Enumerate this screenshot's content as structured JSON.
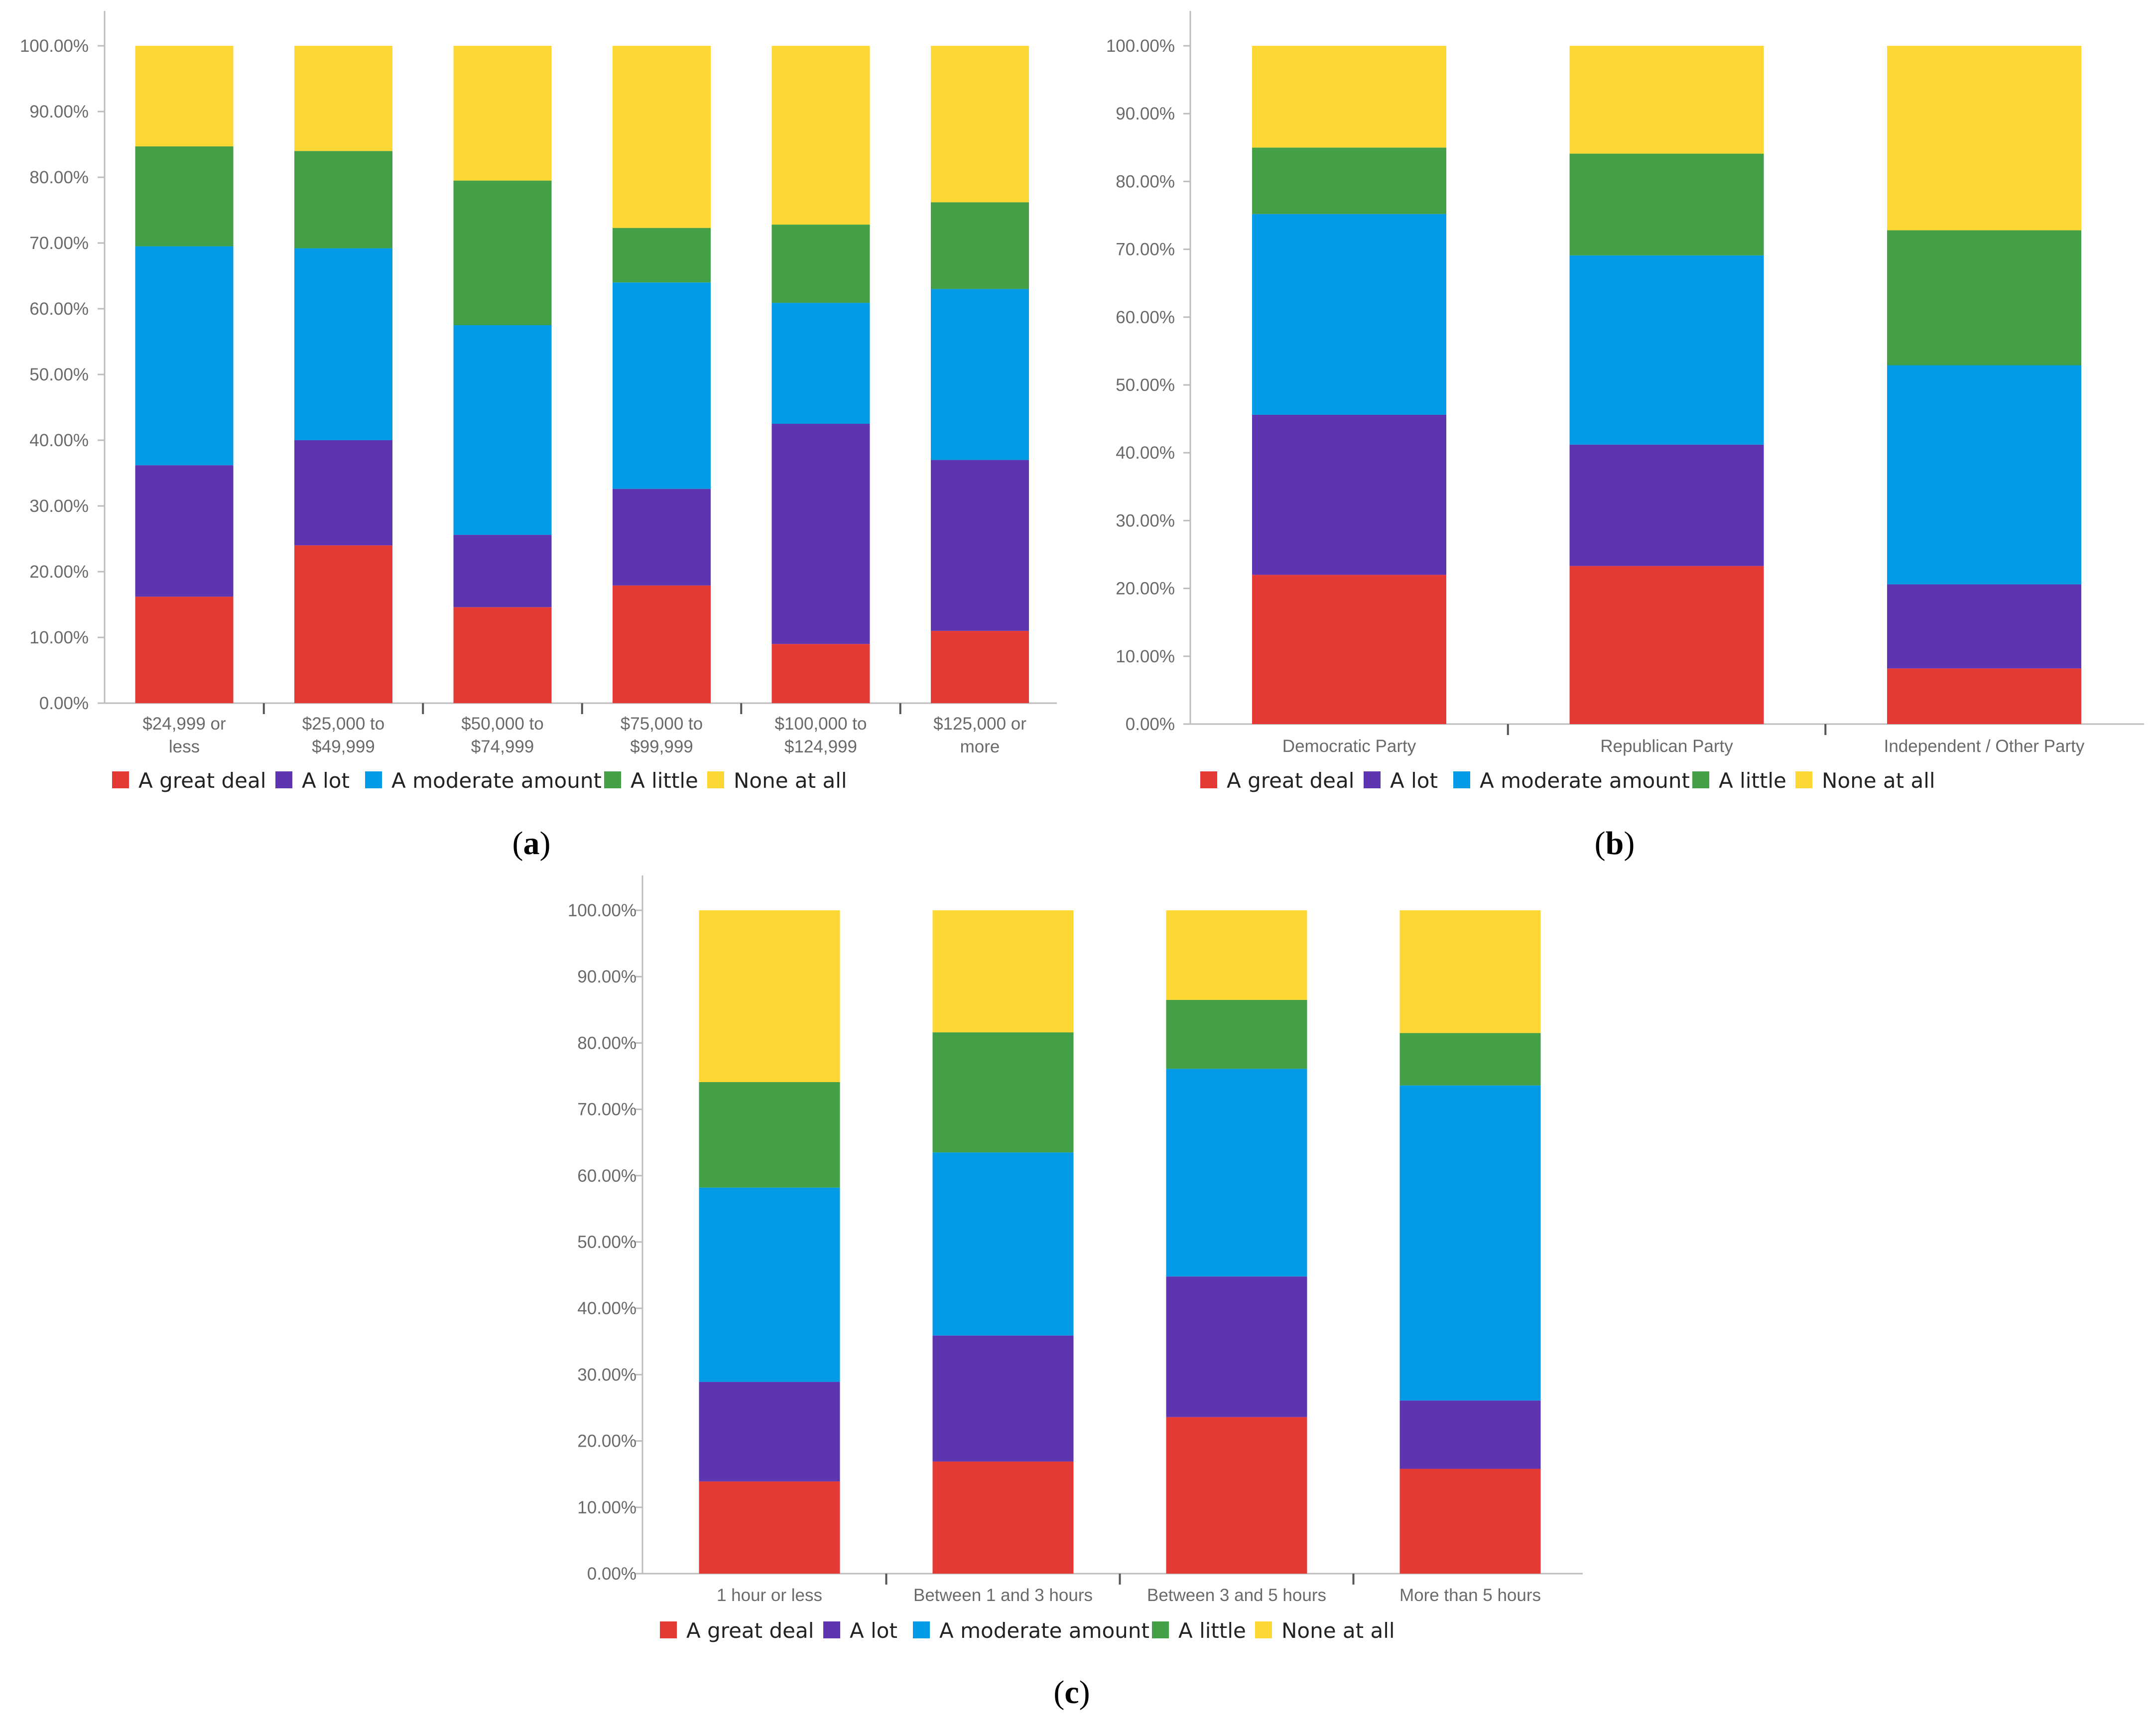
{
  "colors": {
    "A great deal": "#e53935",
    "A lot": "#5e35b1",
    "A moderate amount": "#039be5",
    "A little": "#43a047",
    "None at all": "#fdd835",
    "axis": "#bdbdbd",
    "tick_text": "#6a6a6a"
  },
  "chart_data": [
    {
      "id": "a",
      "panel_label": "(a)",
      "panel_letter": "a",
      "type": "bar",
      "stacked": true,
      "ylim": [
        0,
        100
      ],
      "y_ticks": [
        "0.00%",
        "10.00%",
        "20.00%",
        "30.00%",
        "40.00%",
        "50.00%",
        "60.00%",
        "70.00%",
        "80.00%",
        "90.00%",
        "100.00%"
      ],
      "categories": [
        [
          "$24,999 or",
          "less"
        ],
        [
          "$25,000 to",
          "$49,999"
        ],
        [
          "$50,000 to",
          "$74,999"
        ],
        [
          "$75,000 to",
          "$99,999"
        ],
        [
          "$100,000 to",
          "$124,999"
        ],
        [
          "$125,000 or",
          "more"
        ]
      ],
      "series": [
        {
          "name": "A great deal",
          "values": [
            16.2,
            24.0,
            14.6,
            17.9,
            9.0,
            11.0
          ]
        },
        {
          "name": "A lot",
          "values": [
            20.0,
            16.0,
            11.0,
            14.7,
            33.5,
            26.0
          ]
        },
        {
          "name": "A moderate amount",
          "values": [
            33.3,
            29.2,
            31.9,
            31.4,
            18.4,
            26.0
          ]
        },
        {
          "name": "A little",
          "values": [
            15.2,
            14.8,
            22.0,
            8.3,
            11.9,
            13.2
          ]
        },
        {
          "name": "None at all",
          "values": [
            15.3,
            16.0,
            20.5,
            27.7,
            27.2,
            23.8
          ]
        }
      ],
      "legend": [
        "A great deal",
        "A lot",
        "A moderate amount",
        "A little",
        "None at all"
      ],
      "legend_position": "bottom"
    },
    {
      "id": "b",
      "panel_label": "(b)",
      "panel_letter": "b",
      "type": "bar",
      "stacked": true,
      "ylim": [
        0,
        100
      ],
      "y_ticks": [
        "0.00%",
        "10.00%",
        "20.00%",
        "30.00%",
        "40.00%",
        "50.00%",
        "60.00%",
        "70.00%",
        "80.00%",
        "90.00%",
        "100.00%"
      ],
      "categories": [
        [
          "Democratic Party"
        ],
        [
          "Republican Party"
        ],
        [
          "Independent / Other Party"
        ]
      ],
      "series": [
        {
          "name": "A great deal",
          "values": [
            22.0,
            23.3,
            8.2
          ]
        },
        {
          "name": "A lot",
          "values": [
            23.6,
            17.9,
            12.4
          ]
        },
        {
          "name": "A moderate amount",
          "values": [
            29.6,
            27.9,
            32.3
          ]
        },
        {
          "name": "A little",
          "values": [
            9.8,
            15.0,
            19.9
          ]
        },
        {
          "name": "None at all",
          "values": [
            15.0,
            15.9,
            27.2
          ]
        }
      ],
      "legend": [
        "A great deal",
        "A lot",
        "A moderate amount",
        "A little",
        "None at all"
      ],
      "legend_position": "bottom"
    },
    {
      "id": "c",
      "panel_label": "(c)",
      "panel_letter": "c",
      "type": "bar",
      "stacked": true,
      "ylim": [
        0,
        100
      ],
      "y_ticks": [
        "0.00%",
        "10.00%",
        "20.00%",
        "30.00%",
        "40.00%",
        "50.00%",
        "60.00%",
        "70.00%",
        "80.00%",
        "90.00%",
        "100.00%"
      ],
      "categories": [
        [
          "1 hour or less"
        ],
        [
          "Between 1 and 3 hours"
        ],
        [
          "Between 3 and 5 hours"
        ],
        [
          "More than 5 hours"
        ]
      ],
      "series": [
        {
          "name": "A great deal",
          "values": [
            13.9,
            16.9,
            23.6,
            15.8
          ]
        },
        {
          "name": "A lot",
          "values": [
            15.0,
            19.0,
            21.2,
            10.3
          ]
        },
        {
          "name": "A moderate amount",
          "values": [
            29.3,
            27.6,
            31.3,
            47.5
          ]
        },
        {
          "name": "A little",
          "values": [
            15.9,
            18.1,
            10.4,
            7.9
          ]
        },
        {
          "name": "None at all",
          "values": [
            25.9,
            18.4,
            13.5,
            18.5
          ]
        }
      ],
      "legend": [
        "A great deal",
        "A lot",
        "A moderate amount",
        "A little",
        "None at all"
      ],
      "legend_position": "bottom"
    }
  ]
}
